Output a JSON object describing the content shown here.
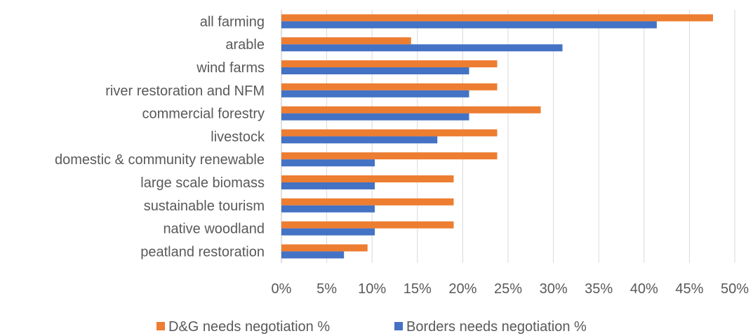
{
  "chart_data": {
    "type": "bar",
    "orientation": "horizontal",
    "title": "",
    "xlabel": "",
    "ylabel": "",
    "categories": [
      "all farming",
      "arable",
      "wind farms",
      "river restoration and NFM",
      "commercial forestry",
      "livestock",
      "domestic & community renewable",
      "large scale biomass",
      "sustainable tourism",
      "native woodland",
      "peatland restoration"
    ],
    "series": [
      {
        "name": "D&G needs negotiation %",
        "color": "#ED7D31",
        "values": [
          47.6,
          14.3,
          23.8,
          23.8,
          28.6,
          23.8,
          23.8,
          19.0,
          19.0,
          19.0,
          9.5
        ]
      },
      {
        "name": "Borders needs negotiation %",
        "color": "#4472C4",
        "values": [
          41.4,
          31.0,
          20.7,
          20.7,
          20.7,
          17.2,
          10.3,
          10.3,
          10.3,
          10.3,
          6.9
        ]
      }
    ],
    "xlim": [
      0,
      50
    ],
    "xticks": [
      "0%",
      "5%",
      "10%",
      "15%",
      "20%",
      "25%",
      "30%",
      "35%",
      "40%",
      "45%",
      "50%"
    ],
    "grid": true,
    "legend_position": "bottom"
  }
}
